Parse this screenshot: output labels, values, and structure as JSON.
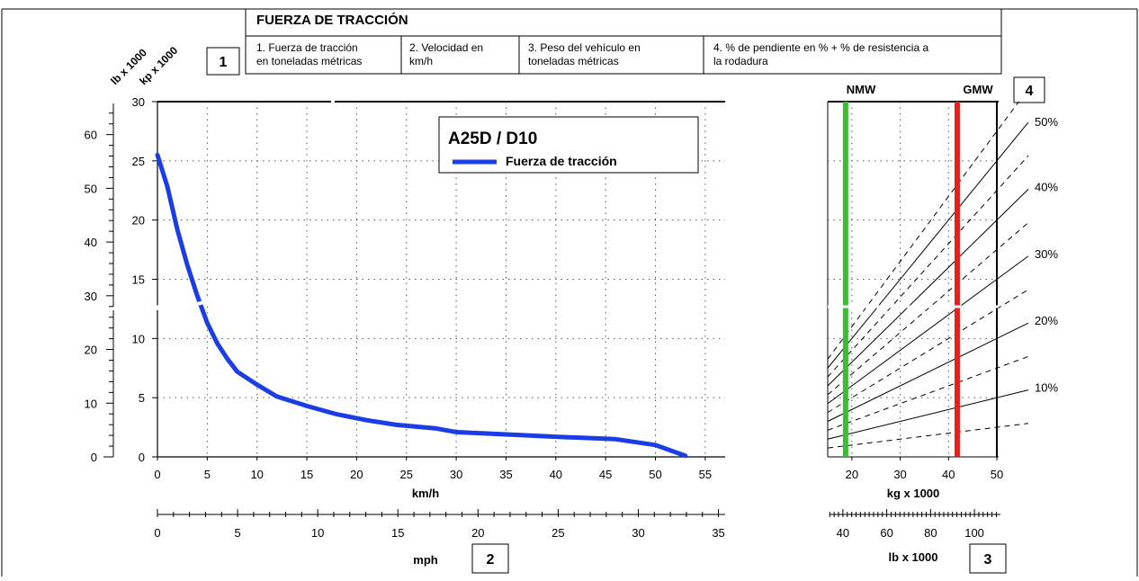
{
  "header": {
    "title": "FUERZA DE TRACCIÓN",
    "badges": {
      "b1": "1",
      "b2": "2",
      "b3": "3",
      "b4": "4"
    },
    "steps": [
      {
        "line1": "1. Fuerza de tracción",
        "line2": "en toneladas métricas"
      },
      {
        "line1": "2. Velocidad en",
        "line2": "km/h"
      },
      {
        "line1": "3. Peso del vehículo en",
        "line2": "toneladas métricas"
      },
      {
        "line1": "4. % de pendiente en % + % de resistencia a",
        "line2": "la rodadura"
      }
    ]
  },
  "axes": {
    "lb_unit": "lb x 1000",
    "kp_unit": "kp x 1000",
    "kmh_label": "km/h",
    "mph_label": "mph",
    "kg_label": "kg x 1000",
    "lb_bottom_label": "lb x 1000",
    "nmw": "NMW",
    "gmw": "GMW"
  },
  "colors": {
    "curve": "#1a3de6",
    "nmw": "#3dbb35",
    "gmw": "#ee1c1c"
  },
  "chart_data": [
    {
      "type": "line",
      "legend": {
        "title": "A25D / D10",
        "series": "Fuerza de tracción"
      },
      "xlabel": "km/h",
      "ylabel": "kp x 1000",
      "xlim": [
        0,
        57
      ],
      "ylim": [
        0,
        30
      ],
      "x_ticks": [
        "0",
        "5",
        "10",
        "15",
        "20",
        "25",
        "30",
        "35",
        "40",
        "45",
        "50",
        "55"
      ],
      "y_ticks": [
        "0",
        "5",
        "10",
        "15",
        "20",
        "25",
        "30"
      ],
      "y2_ticks": [
        "0",
        "10",
        "20",
        "30",
        "40",
        "50",
        "60"
      ],
      "mph_ticks": [
        "0",
        "5",
        "10",
        "15",
        "20",
        "25",
        "30",
        "35"
      ],
      "grid": true,
      "series": [
        {
          "name": "Fuerza de tracción",
          "x": [
            0,
            1,
            2,
            3,
            4,
            5,
            6,
            7,
            8,
            10,
            12,
            15,
            18,
            21,
            24,
            28,
            30,
            35,
            40,
            46,
            50,
            53
          ],
          "y": [
            25.5,
            22.8,
            19.2,
            16.2,
            13.6,
            11.3,
            9.6,
            8.3,
            7.2,
            6.1,
            5.1,
            4.3,
            3.6,
            3.1,
            2.7,
            2.4,
            2.1,
            1.9,
            1.7,
            1.5,
            1.0,
            0.1
          ]
        }
      ]
    },
    {
      "type": "line",
      "xlabel": "kg x 1000",
      "xlim": [
        15,
        50
      ],
      "x_ticks": [
        "20",
        "30",
        "40",
        "50"
      ],
      "lb_ticks": [
        "40",
        "60",
        "80",
        "100"
      ],
      "grade_labels": [
        "50%",
        "40%",
        "30%",
        "20%",
        "10%"
      ],
      "nmw_x": 18.7,
      "gmw_x": 41.8
    }
  ]
}
